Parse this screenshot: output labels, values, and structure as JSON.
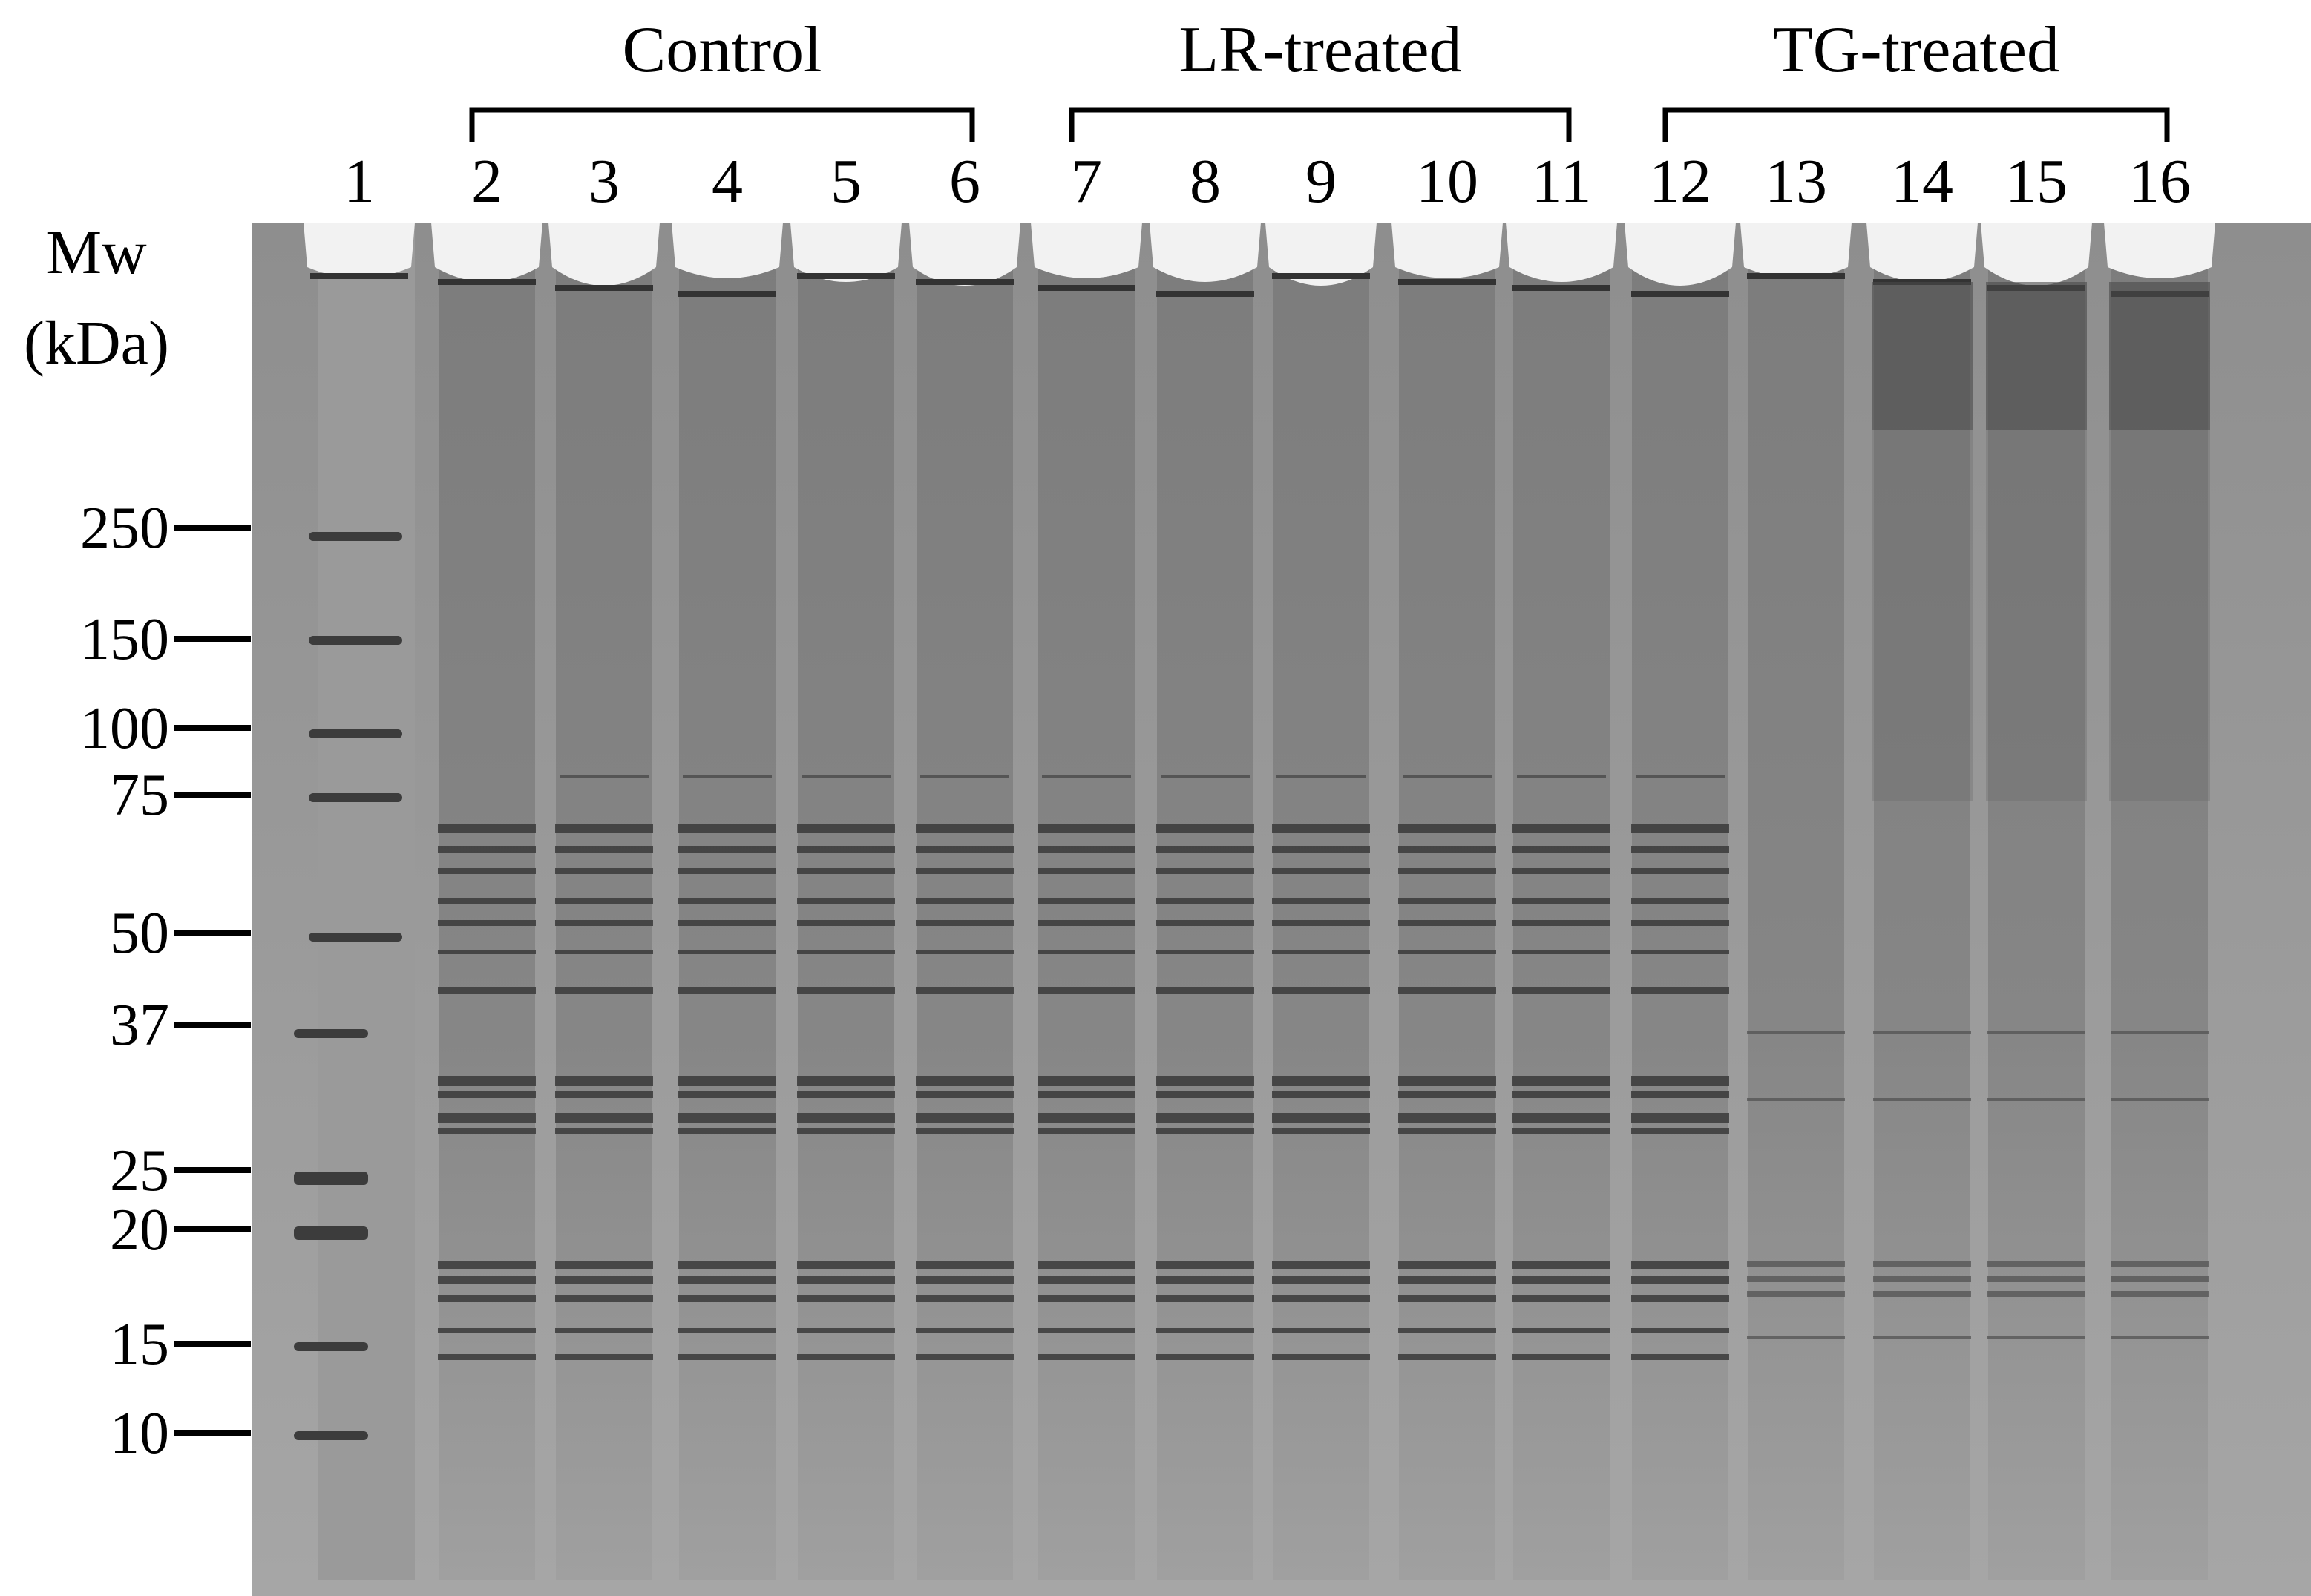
{
  "axis_label": {
    "line1": "Mw",
    "line2": "(kDa)"
  },
  "groups": [
    {
      "label": "Control",
      "lanes": [
        2,
        6
      ]
    },
    {
      "label": "LR-treated",
      "lanes": [
        7,
        11
      ]
    },
    {
      "label": "TG-treated",
      "lanes": [
        12,
        16
      ]
    }
  ],
  "lanes": [
    "1",
    "2",
    "3",
    "4",
    "5",
    "6",
    "7",
    "8",
    "9",
    "10",
    "11",
    "12",
    "13",
    "14",
    "15",
    "16"
  ],
  "markers": [
    "250",
    "150",
    "100",
    "75",
    "50",
    "37",
    "25",
    "20",
    "15",
    "10"
  ]
}
